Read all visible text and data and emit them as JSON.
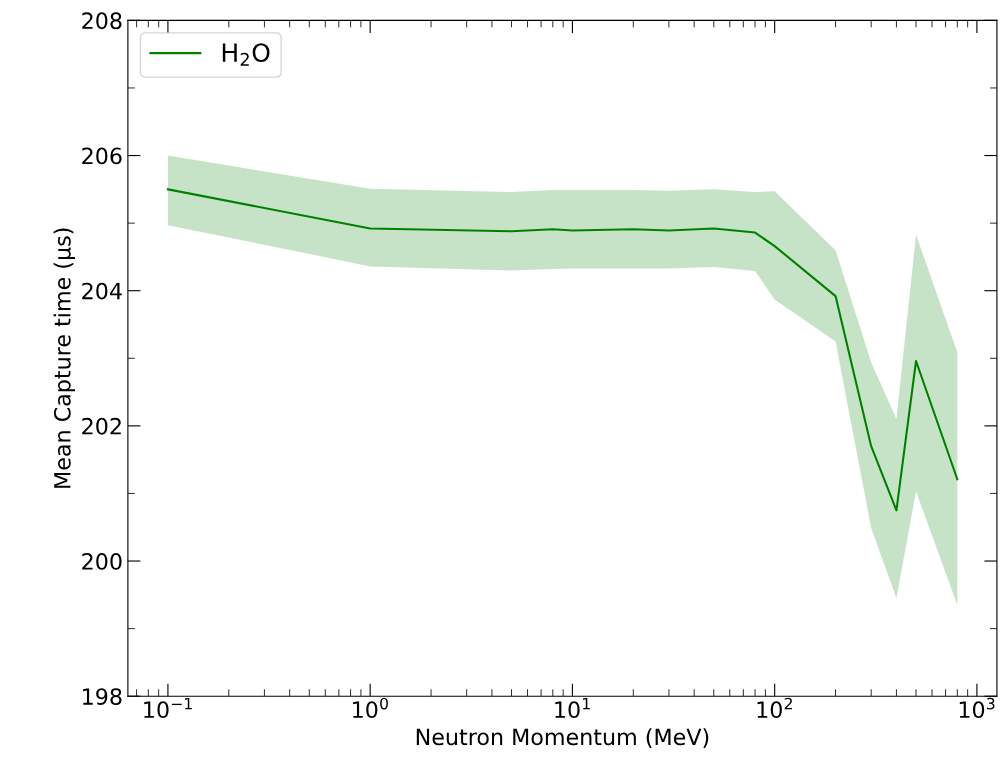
{
  "chart_data": {
    "type": "line",
    "xlabel": "Neutron Momentum (MeV)",
    "ylabel": "Mean Capture time (μs)",
    "log": "x",
    "xlim": [
      0.0634,
      1256
    ],
    "xticks": [
      {
        "value": 0.1,
        "label": "10$^{−1}$"
      },
      {
        "value": 1,
        "label": "10$^{0}$"
      },
      {
        "value": 10,
        "label": "10$^{1}$"
      },
      {
        "value": 100,
        "label": "10$^{2}$"
      },
      {
        "value": 1000,
        "label": "10$^{3}$"
      }
    ],
    "ylim": [
      198,
      208
    ],
    "yticks": [
      198,
      200,
      202,
      204,
      206,
      208
    ],
    "grid": false,
    "legend": "top left",
    "x": [
      0.1,
      1,
      5,
      8,
      10,
      20,
      30,
      50,
      80,
      100,
      200,
      300,
      400,
      500,
      800
    ],
    "series": [
      {
        "name": "H$_{2}$O",
        "color": "#008000",
        "values": [
          205.5,
          204.92,
          204.88,
          204.91,
          204.89,
          204.91,
          204.89,
          204.92,
          204.86,
          204.66,
          203.92,
          201.7,
          200.75,
          202.96,
          201.21
        ],
        "lower": [
          204.97,
          204.36,
          204.3,
          204.32,
          204.33,
          204.33,
          204.33,
          204.35,
          204.29,
          203.87,
          203.25,
          200.49,
          199.45,
          201.03,
          199.35
        ],
        "upper": [
          206.0,
          205.51,
          205.46,
          205.49,
          205.49,
          205.49,
          205.48,
          205.5,
          205.46,
          205.47,
          204.6,
          202.94,
          202.1,
          204.83,
          203.09
        ]
      }
    ]
  }
}
